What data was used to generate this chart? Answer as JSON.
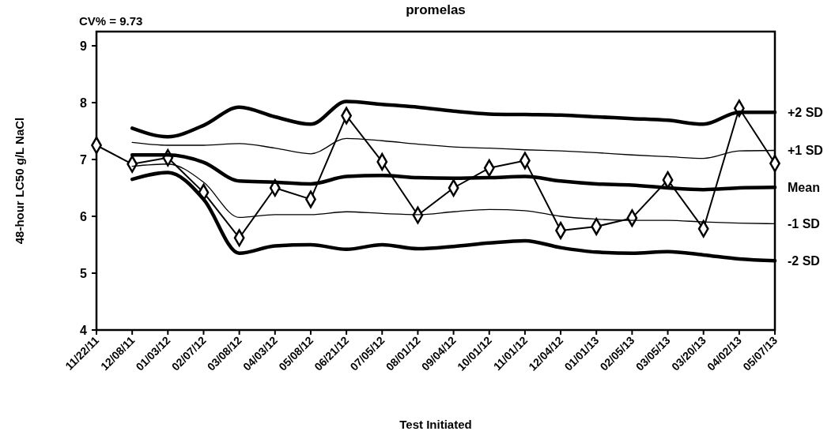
{
  "chart_data": {
    "type": "line",
    "title": "promelas",
    "xlabel": "Test Initiated",
    "ylabel": "48-hour LC50 g/L NaCl",
    "annotations": [
      "CV% = 9.73"
    ],
    "categories": [
      "11/22/11",
      "12/08/11",
      "01/03/12",
      "02/07/12",
      "03/08/12",
      "04/03/12",
      "05/08/12",
      "06/21/12",
      "07/05/12",
      "08/01/12",
      "09/04/12",
      "10/01/12",
      "11/01/12",
      "12/04/12",
      "01/01/13",
      "02/05/13",
      "03/05/13",
      "03/20/13",
      "04/02/13",
      "05/07/13"
    ],
    "ylim": [
      4,
      9.25
    ],
    "yticks": [
      4,
      5,
      6,
      7,
      8,
      9
    ],
    "grid": false,
    "series": [
      {
        "color": "#000000",
        "marker": "diamond",
        "values": [
          7.25,
          6.92,
          7.03,
          6.42,
          5.62,
          6.5,
          6.3,
          7.77,
          6.96,
          6.02,
          6.5,
          6.85,
          6.98,
          5.75,
          5.82,
          5.97,
          6.64,
          5.78,
          7.9,
          6.93
        ]
      },
      {
        "name": "+2 SD",
        "color": "#000000",
        "marker": "none",
        "values": [
          null,
          7.55,
          7.4,
          7.6,
          7.92,
          7.75,
          7.62,
          8.02,
          7.97,
          7.92,
          7.85,
          7.8,
          7.79,
          7.78,
          7.75,
          7.72,
          7.69,
          7.62,
          7.83,
          7.83
        ]
      },
      {
        "name": "+1 SD",
        "color": "#000000",
        "marker": "none",
        "values": [
          null,
          7.3,
          7.25,
          7.25,
          7.28,
          7.2,
          7.1,
          7.37,
          7.33,
          7.27,
          7.22,
          7.2,
          7.17,
          7.15,
          7.12,
          7.08,
          7.05,
          7.02,
          7.15,
          7.16
        ]
      },
      {
        "name": "Mean",
        "color": "#000000",
        "marker": "none",
        "values": [
          null,
          7.08,
          7.08,
          6.95,
          6.62,
          6.6,
          6.57,
          6.7,
          6.72,
          6.68,
          6.67,
          6.68,
          6.7,
          6.62,
          6.57,
          6.55,
          6.5,
          6.47,
          6.5,
          6.51
        ]
      },
      {
        "name": "-1 SD",
        "color": "#000000",
        "marker": "none",
        "values": [
          null,
          6.88,
          6.92,
          6.6,
          5.98,
          6.03,
          6.03,
          6.08,
          6.05,
          6.03,
          6.08,
          6.12,
          6.1,
          6.0,
          5.95,
          5.93,
          5.93,
          5.9,
          5.88,
          5.87
        ]
      },
      {
        "name": "-2 SD",
        "color": "#000000",
        "marker": "none",
        "values": [
          null,
          6.65,
          6.77,
          6.3,
          5.35,
          5.48,
          5.5,
          5.42,
          5.5,
          5.43,
          5.47,
          5.53,
          5.57,
          5.45,
          5.37,
          5.35,
          5.38,
          5.32,
          5.25,
          5.22
        ]
      }
    ]
  }
}
